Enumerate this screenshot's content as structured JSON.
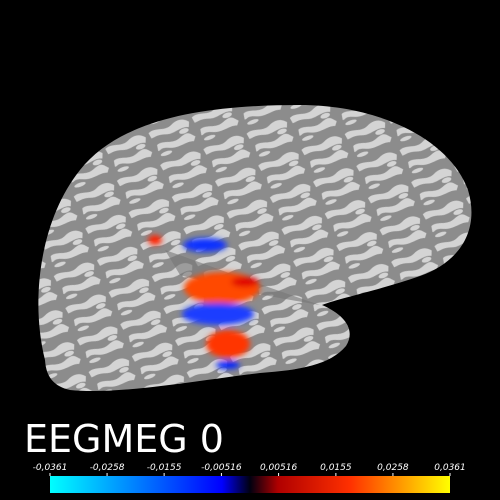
{
  "title": "EEGMEG 0",
  "colorbar": {
    "lim": [
      -0.0361,
      0.0361
    ],
    "ticks": [
      {
        "value": -0.0361,
        "label": "-0,0361"
      },
      {
        "value": -0.0258,
        "label": "-0,0258"
      },
      {
        "value": -0.0155,
        "label": "-0,0155"
      },
      {
        "value": -0.00516,
        "label": "-0,00516"
      },
      {
        "value": 0.00516,
        "label": "0,00516"
      },
      {
        "value": 0.0155,
        "label": "0,0155"
      },
      {
        "value": 0.0258,
        "label": "0,0258"
      },
      {
        "value": 0.0361,
        "label": "0,0361"
      }
    ]
  }
}
